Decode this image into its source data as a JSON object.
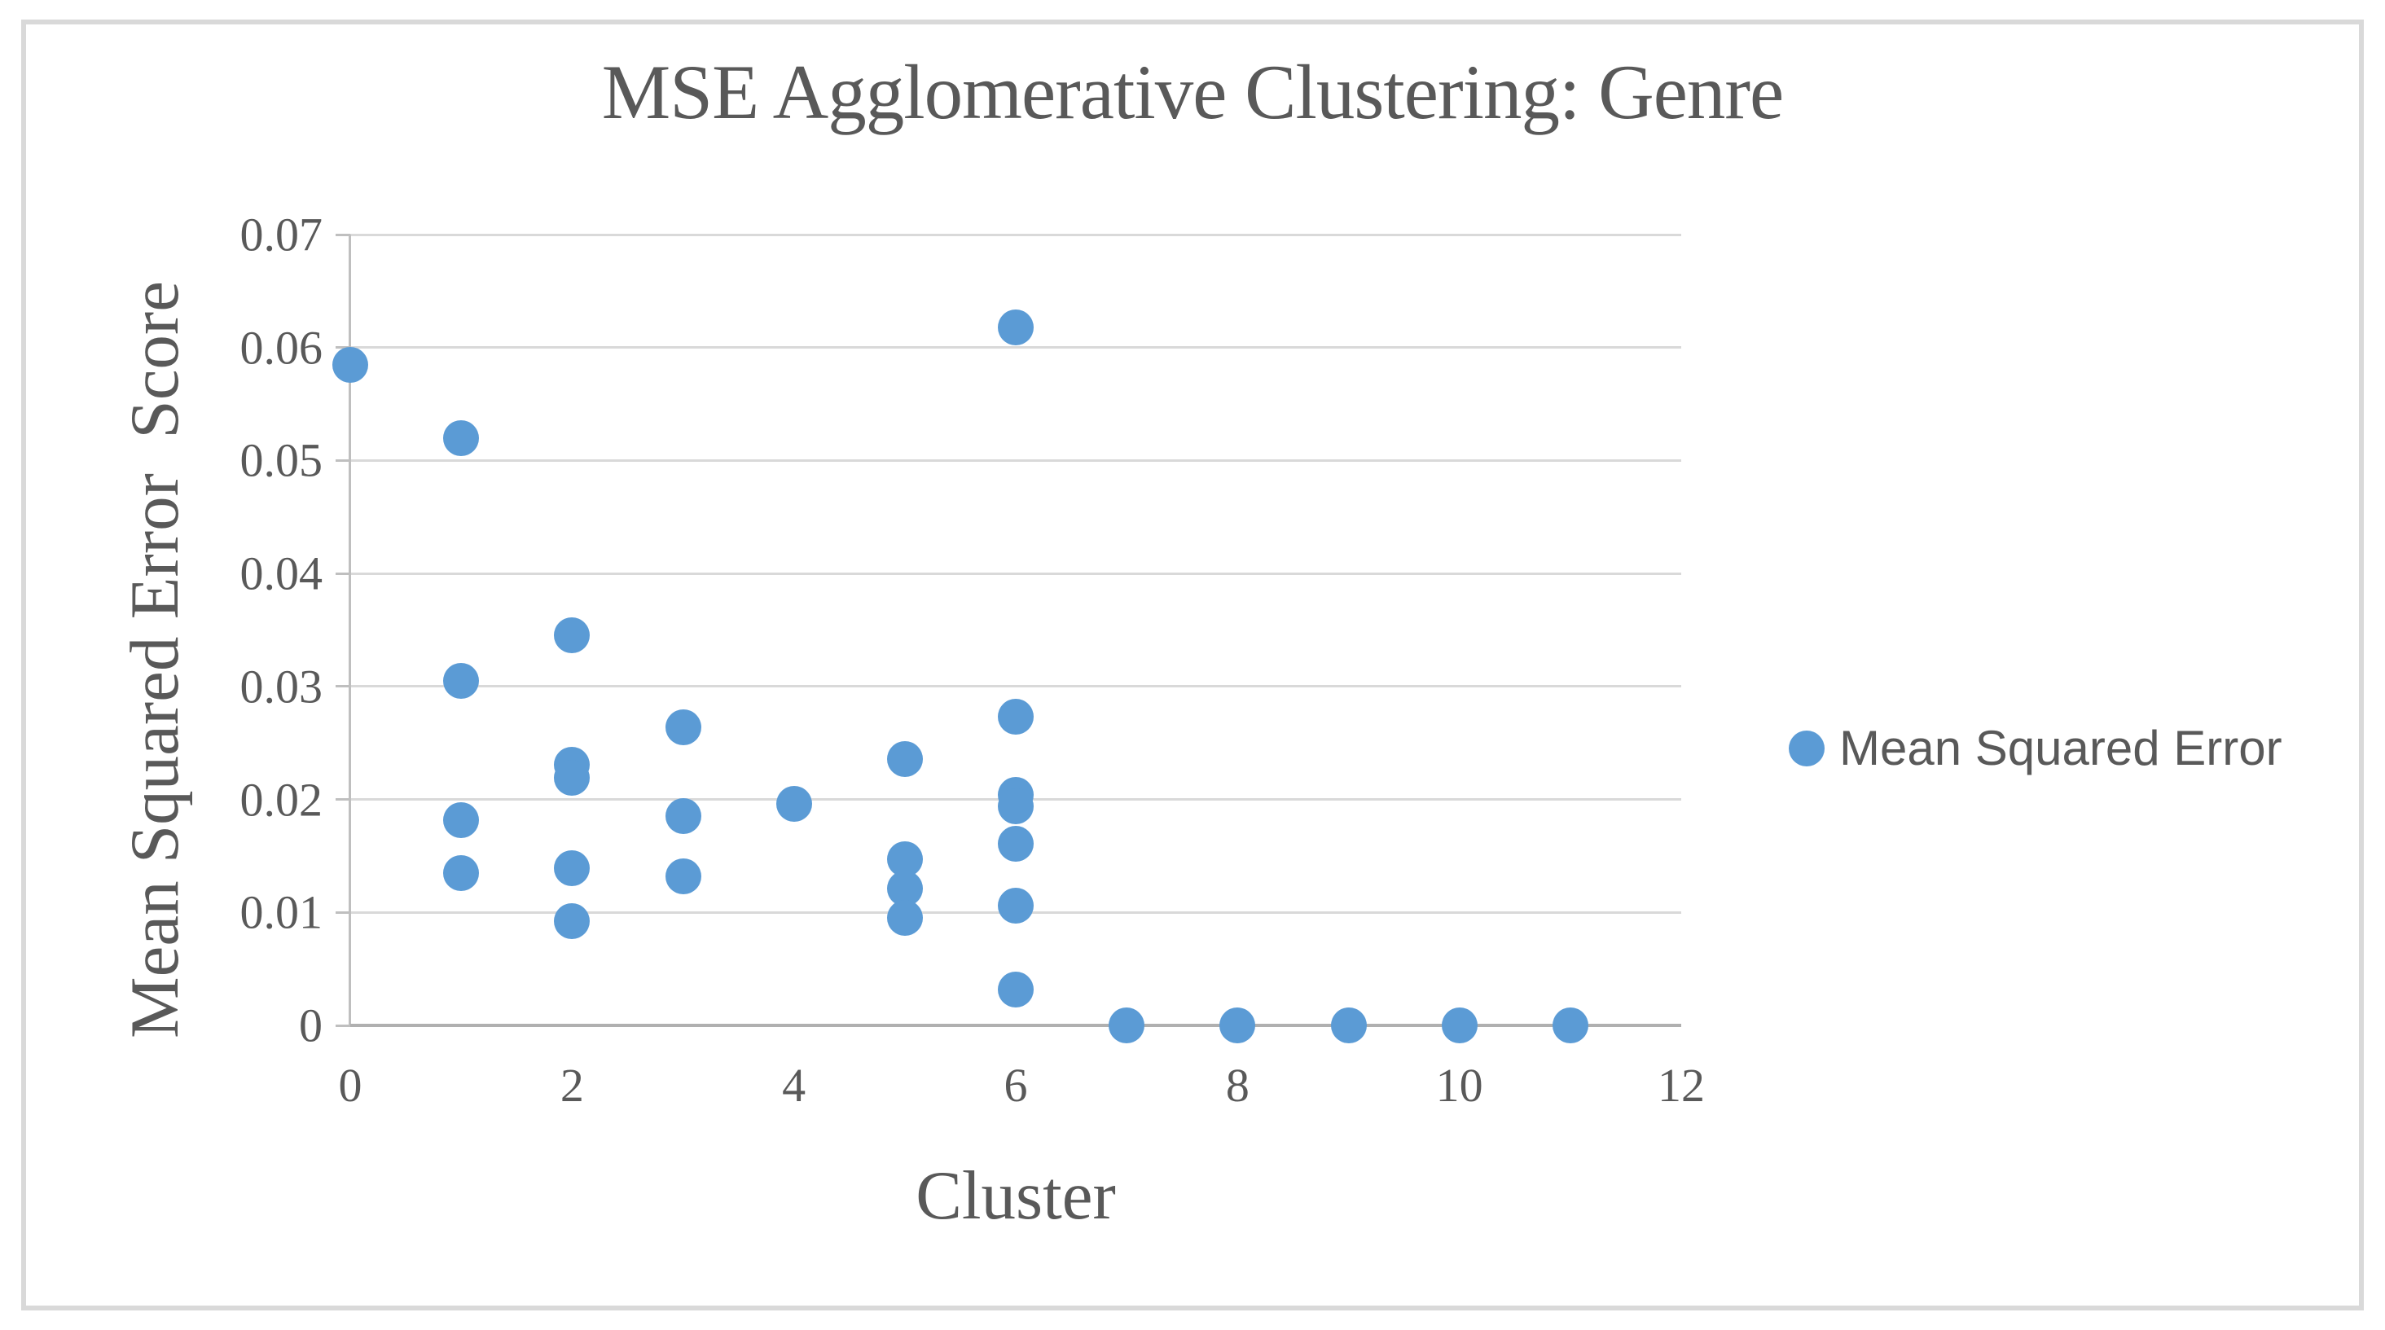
{
  "figure": {
    "background": "#ffffff",
    "border_color": "#d9d9d9"
  },
  "chart_data": {
    "type": "scatter",
    "title": "MSE Agglomerative Clustering: Genre",
    "xlabel": "Cluster",
    "ylabel": "Mean Squared Error  Score",
    "xlim": [
      0,
      12
    ],
    "ylim": [
      0,
      0.07
    ],
    "x_ticks": [
      0,
      2,
      4,
      6,
      8,
      10,
      12
    ],
    "x_tick_labels": [
      "0",
      "2",
      "4",
      "6",
      "8",
      "10",
      "12"
    ],
    "y_ticks": [
      0,
      0.01,
      0.02,
      0.03,
      0.04,
      0.05,
      0.06,
      0.07
    ],
    "y_tick_labels": [
      "0",
      "0.01",
      "0.02",
      "0.03",
      "0.04",
      "0.05",
      "0.06",
      "0.07"
    ],
    "grid": "horizontal-only",
    "legend": {
      "label": "Mean Squared Error",
      "position": "right",
      "marker_color": "#5b9bd5"
    },
    "series": [
      {
        "name": "Mean Squared Error",
        "color": "#5b9bd5",
        "points": [
          [
            0,
            0.0585
          ],
          [
            1,
            0.052
          ],
          [
            1,
            0.0305
          ],
          [
            1,
            0.0182
          ],
          [
            1,
            0.0135
          ],
          [
            2,
            0.0345
          ],
          [
            2,
            0.0231
          ],
          [
            2,
            0.0219
          ],
          [
            2,
            0.0139
          ],
          [
            2,
            0.0092
          ],
          [
            3,
            0.0264
          ],
          [
            3,
            0.0185
          ],
          [
            3,
            0.0132
          ],
          [
            4,
            0.0196
          ],
          [
            5,
            0.0236
          ],
          [
            5,
            0.0147
          ],
          [
            5,
            0.0121
          ],
          [
            5,
            0.0095
          ],
          [
            6,
            0.0618
          ],
          [
            6,
            0.0273
          ],
          [
            6,
            0.0204
          ],
          [
            6,
            0.0194
          ],
          [
            6,
            0.0161
          ],
          [
            6,
            0.0106
          ],
          [
            6,
            0.0032
          ],
          [
            7,
            0
          ],
          [
            8,
            0
          ],
          [
            9,
            0
          ],
          [
            10,
            0
          ],
          [
            11,
            0
          ]
        ]
      }
    ],
    "colors": {
      "gridline": "#d9d9d9",
      "y_axis": "#bfbfbf",
      "x_axis": "#b0b0b0",
      "text": "#595959"
    }
  }
}
